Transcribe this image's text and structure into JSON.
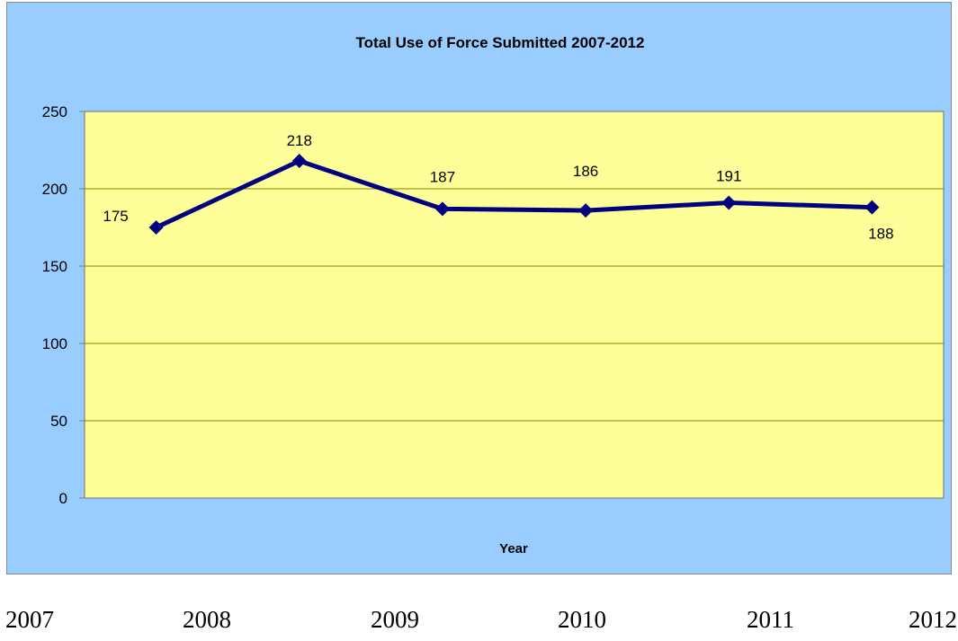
{
  "chart_data": {
    "type": "line",
    "title": "Total Use of Force Submitted 2007-2012",
    "xlabel": "Year",
    "ylabel": "",
    "ylim": [
      0,
      250
    ],
    "yticks": [
      0,
      50,
      100,
      150,
      200,
      250
    ],
    "grid": true,
    "categories": [
      "2007",
      "2008",
      "2009",
      "2010",
      "2011",
      "2012"
    ],
    "series": [
      {
        "values": [
          175,
          218,
          187,
          186,
          191,
          188
        ]
      }
    ],
    "colors": {
      "outer_background": "#99ccff",
      "plot_background": "#ffff99",
      "line": "#000080",
      "gridline": "#808000"
    }
  },
  "year_labels": [
    "2007",
    "2008",
    "2009",
    "2010",
    "2011",
    "2012"
  ]
}
